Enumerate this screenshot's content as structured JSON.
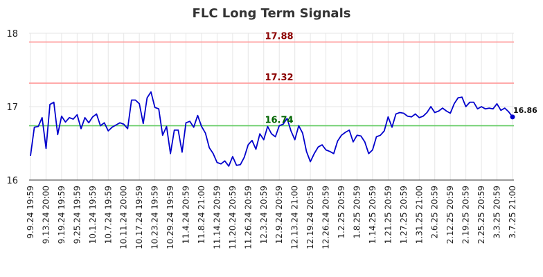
{
  "chart_data": {
    "type": "line",
    "title": "FLC Long Term Signals",
    "xlabel": "",
    "ylabel": "",
    "ylim": [
      16,
      18
    ],
    "yticks": [
      "16",
      "17",
      "18"
    ],
    "grid": true,
    "x_tick_labels": [
      "9.9.24 19:59",
      "9.13.24 20:00",
      "9.19.24 19:59",
      "9.25.24 19:59",
      "10.1.24 19:59",
      "10.7.24 19:59",
      "10.11.24 20:00",
      "10.17.24 19:59",
      "10.23.24 19:59",
      "10.29.24 19:59",
      "11.4.24 20:59",
      "11.8.24 21:00",
      "11.14.24 20:59",
      "11.20.24 20:59",
      "11.26.24 20:59",
      "12.3.24 20:59",
      "12.9.24 20:59",
      "12.13.24 21:00",
      "12.19.24 20:59",
      "12.26.24 20:59",
      "1.2.25 20:59",
      "1.8.25 20:59",
      "1.14.25 20:59",
      "1.21.25 20:59",
      "1.27.25 20:59",
      "1.31.25 21:00",
      "2.6.25 20:59",
      "2.12.25 20:59",
      "2.19.25 20:59",
      "2.25.25 20:59",
      "3.3.25 20:59",
      "3.7.25 21:00"
    ],
    "series": [
      {
        "values": [
          16.33,
          16.72,
          16.73,
          16.85,
          16.43,
          17.03,
          17.06,
          16.62,
          16.87,
          16.79,
          16.85,
          16.83,
          16.89,
          16.7,
          16.85,
          16.78,
          16.86,
          16.9,
          16.74,
          16.78,
          16.67,
          16.72,
          16.75,
          16.78,
          16.76,
          16.7,
          17.09,
          17.09,
          17.04,
          16.77,
          17.12,
          17.2,
          16.99,
          16.97,
          16.61,
          16.73,
          16.36,
          16.68,
          16.68,
          16.38,
          16.78,
          16.8,
          16.72,
          16.88,
          16.73,
          16.64,
          16.44,
          16.36,
          16.24,
          16.22,
          16.26,
          16.19,
          16.32,
          16.2,
          16.21,
          16.31,
          16.48,
          16.54,
          16.42,
          16.63,
          16.55,
          16.73,
          16.63,
          16.59,
          16.74,
          16.76,
          16.84,
          16.67,
          16.55,
          16.74,
          16.64,
          16.39,
          16.25,
          16.36,
          16.45,
          16.48,
          16.41,
          16.39,
          16.36,
          16.53,
          16.61,
          16.65,
          16.68,
          16.52,
          16.61,
          16.6,
          16.52,
          16.36,
          16.41,
          16.59,
          16.61,
          16.67,
          16.86,
          16.72,
          16.9,
          16.92,
          16.91,
          16.87,
          16.86,
          16.9,
          16.85,
          16.87,
          16.92,
          17.0,
          16.92,
          16.94,
          16.98,
          16.94,
          16.91,
          17.04,
          17.12,
          17.13,
          17.0,
          17.06,
          17.06,
          16.97,
          17.0,
          16.97,
          16.98,
          16.97,
          17.04,
          16.95,
          16.98,
          16.93,
          16.86
        ]
      }
    ],
    "reference_lines": [
      {
        "value": 17.88,
        "label": "17.88",
        "color": "#ff9999",
        "label_color": "#8b0000"
      },
      {
        "value": 17.32,
        "label": "17.32",
        "color": "#ff9999",
        "label_color": "#8b0000"
      },
      {
        "value": 16.74,
        "label": "16.74",
        "color": "#66cc66",
        "label_color": "#006400"
      }
    ],
    "last_value_label": "16.86",
    "line_color": "#0000cc"
  }
}
